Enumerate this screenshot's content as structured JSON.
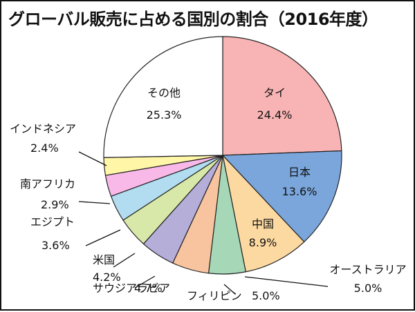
{
  "chart_data": {
    "type": "pie",
    "title": "グローバル販売に占める国別の割合（2016年度）",
    "unit": "%",
    "slices": [
      {
        "name": "タイ",
        "value": 24.4,
        "display": "24.4%",
        "color": "#f8b4b4"
      },
      {
        "name": "日本",
        "value": 13.6,
        "display": "13.6%",
        "color": "#7aa6dc"
      },
      {
        "name": "中国",
        "value": 8.9,
        "display": "8.9%",
        "color": "#fdd9a2"
      },
      {
        "name": "オーストラリア",
        "value": 5.0,
        "display": "5.0%",
        "color": "#a6d8b8"
      },
      {
        "name": "フィリピン",
        "value": 5.0,
        "display": "5.0%",
        "color": "#f8c4a0"
      },
      {
        "name": "サウジアラビア",
        "value": 4.7,
        "display": "4.7%",
        "color": "#b4aed8"
      },
      {
        "name": "米国",
        "value": 4.2,
        "display": "4.2%",
        "color": "#d8e8a8"
      },
      {
        "name": "エジプト",
        "value": 3.6,
        "display": "3.6%",
        "color": "#b2dcf0"
      },
      {
        "name": "南アフリカ",
        "value": 2.9,
        "display": "2.9%",
        "color": "#f8b8e8"
      },
      {
        "name": "インドネシア",
        "value": 2.4,
        "display": "2.4%",
        "color": "#fff6a8"
      },
      {
        "name": "その他",
        "value": 25.3,
        "display": "25.3%",
        "color": "#ffffff"
      }
    ]
  }
}
